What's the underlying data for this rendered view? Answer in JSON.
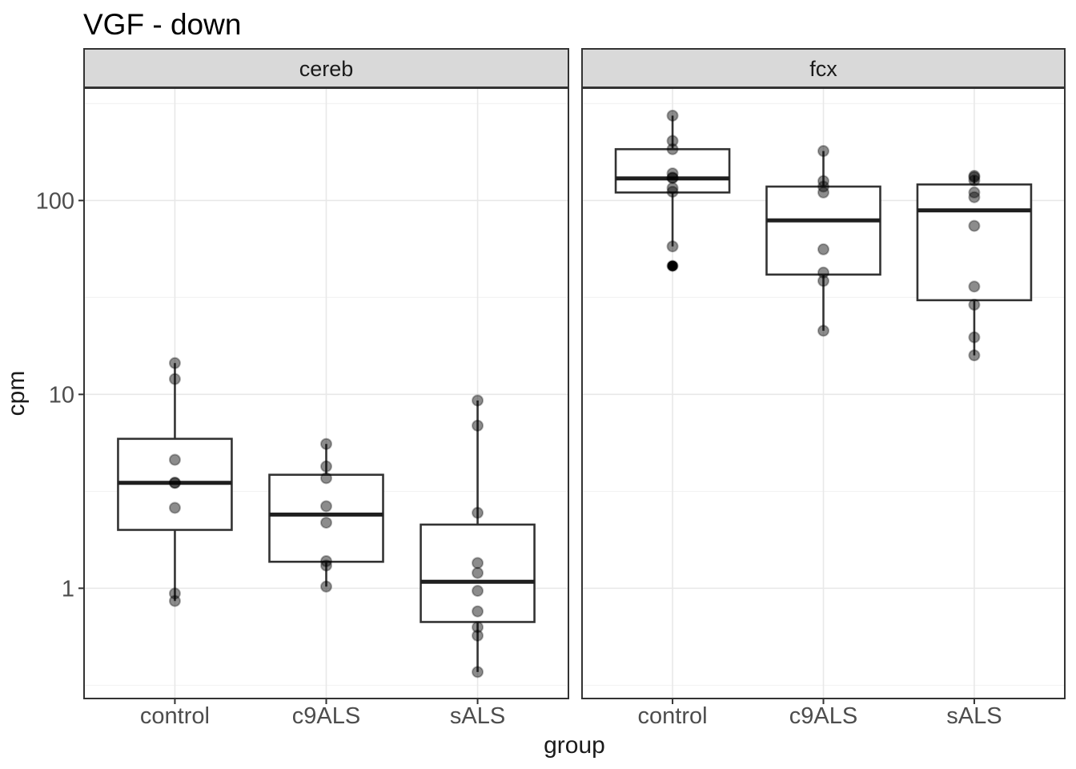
{
  "title": "VGF - down",
  "axes": {
    "x": {
      "label": "group",
      "categories": [
        "control",
        "c9ALS",
        "sALS"
      ]
    },
    "y": {
      "label": "cpm",
      "scale": "log10",
      "tick_labels": [
        "100",
        "10",
        "1"
      ],
      "tick_values": [
        100,
        10,
        1
      ],
      "minor_tick_values": [
        316,
        31.6,
        3.16,
        0.316
      ],
      "range": [
        0.27,
        380
      ]
    }
  },
  "chart_data": {
    "type": "boxplot",
    "title": "VGF - down",
    "xlabel": "group",
    "ylabel": "cpm",
    "y_scale": "log10",
    "ylim": [
      0.27,
      380
    ],
    "grid": "on",
    "legend": "none",
    "facets": [
      {
        "label": "cereb",
        "groups": [
          {
            "label": "control",
            "box": {
              "q1": 2.0,
              "median": 3.5,
              "q3": 5.9,
              "whisker_low": 0.86,
              "whisker_high": 14.5
            },
            "points": [
              14.5,
              12.0,
              4.6,
              3.5,
              3.5,
              2.6,
              0.94,
              0.86
            ],
            "outliers": []
          },
          {
            "label": "c9ALS",
            "box": {
              "q1": 1.37,
              "median": 2.4,
              "q3": 3.85,
              "whisker_low": 1.02,
              "whisker_high": 5.55
            },
            "points": [
              5.55,
              4.25,
              3.7,
              2.65,
              2.18,
              1.38,
              1.31,
              1.02
            ],
            "outliers": []
          },
          {
            "label": "sALS",
            "box": {
              "q1": 0.67,
              "median": 1.08,
              "q3": 2.13,
              "whisker_low": 0.37,
              "whisker_high": 9.3
            },
            "points": [
              9.3,
              6.9,
              2.45,
              1.35,
              1.2,
              0.97,
              0.76,
              0.63,
              0.57,
              0.37
            ],
            "outliers": []
          }
        ]
      },
      {
        "label": "fcx",
        "groups": [
          {
            "label": "control",
            "box": {
              "q1": 110,
              "median": 130,
              "q3": 184,
              "whisker_low": 58,
              "whisker_high": 274
            },
            "points": [
              274,
              203,
              184,
              138,
              131,
              131,
              116,
              111,
              58,
              46
            ],
            "outliers": [
              46
            ]
          },
          {
            "label": "c9ALS",
            "box": {
              "q1": 41.5,
              "median": 79,
              "q3": 118,
              "whisker_low": 21.3,
              "whisker_high": 180
            },
            "points": [
              180,
              126,
              118,
              110,
              56,
              42.5,
              38.5,
              21.3
            ],
            "outliers": []
          },
          {
            "label": "sALS",
            "box": {
              "q1": 30.6,
              "median": 89,
              "q3": 121,
              "whisker_low": 15.9,
              "whisker_high": 134
            },
            "points": [
              134,
              132,
              127,
              110,
              104,
              74,
              36,
              29,
              19.7,
              15.9
            ],
            "outliers": []
          }
        ]
      }
    ]
  },
  "colors": {
    "strip_fill": "#d9d9d9",
    "panel_border": "#333333",
    "grid_major": "#e8e8e8",
    "grid_minor": "#f3f3f3",
    "box_stroke": "#333333",
    "median_stroke": "#1f1f1f",
    "point_fill": "rgba(0,0,0,0.45)",
    "point_stroke": "rgba(0,0,0,0.30)",
    "outlier_fill": "#000000",
    "tick_text": "#4d4d4d",
    "axis_text": "#1a1a1a"
  }
}
